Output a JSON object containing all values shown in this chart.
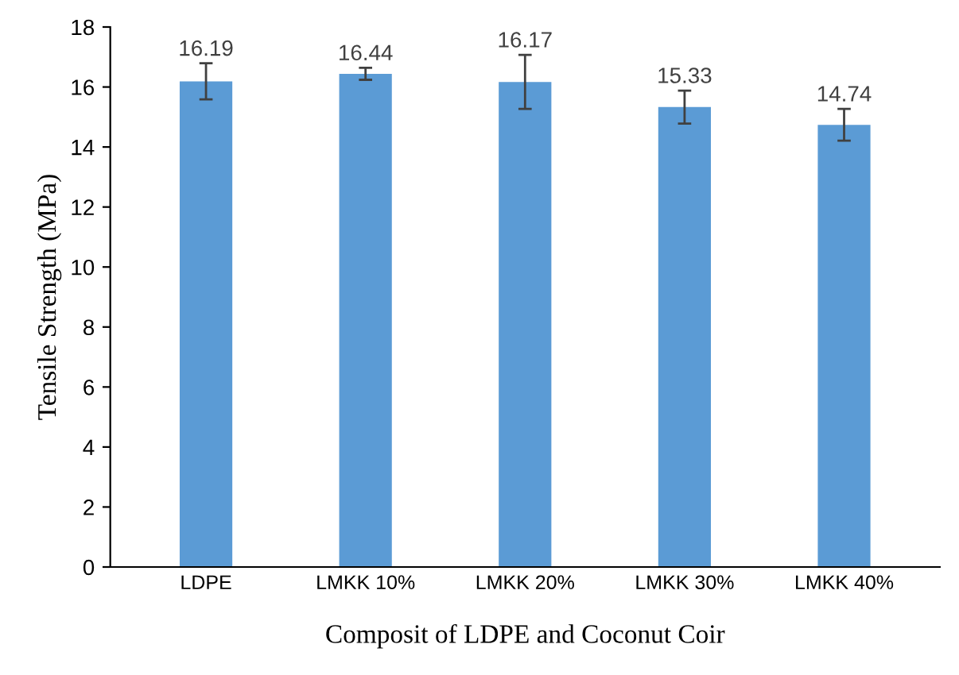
{
  "chart_data": {
    "type": "bar",
    "xlabel": "Composit of LDPE and Coconut Coir",
    "ylabel": "Tensile Strength (MPa)",
    "categories": [
      "LDPE",
      "LMKK 10%",
      "LMKK 20%",
      "LMKK 30%",
      "LMKK 40%"
    ],
    "values": [
      16.19,
      16.44,
      16.17,
      15.33,
      14.74
    ],
    "errors": [
      0.6,
      0.2,
      0.9,
      0.55,
      0.53
    ],
    "color": "#5b9bd5",
    "ylim": [
      0,
      18
    ],
    "yticks": [
      0,
      2,
      4,
      6,
      8,
      10,
      12,
      14,
      16,
      18
    ],
    "data_labels": true,
    "grid": false,
    "legend": false
  }
}
